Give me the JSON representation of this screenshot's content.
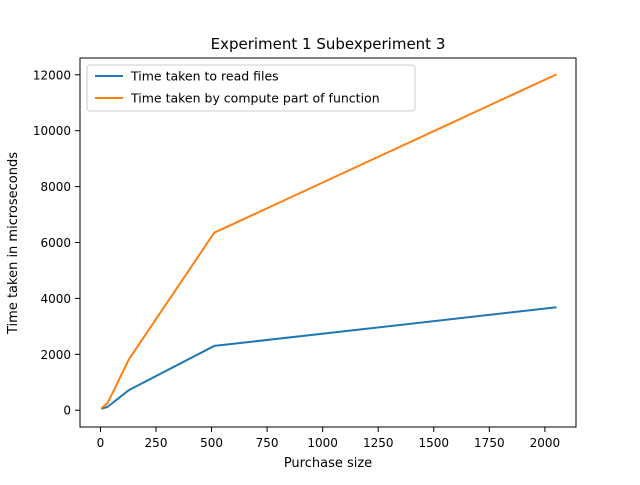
{
  "chart_data": {
    "type": "line",
    "title": "Experiment 1 Subexperiment 3",
    "xlabel": "Purchase size",
    "ylabel": "Time taken in microseconds",
    "xlim": [
      -92,
      2140
    ],
    "ylim": [
      -600,
      12600
    ],
    "xticks": [
      0,
      250,
      500,
      750,
      1000,
      1250,
      1500,
      1750,
      2000
    ],
    "yticks": [
      0,
      2000,
      4000,
      6000,
      8000,
      10000,
      12000
    ],
    "grid": false,
    "legend_position": "top-left",
    "series": [
      {
        "name": "Time taken to read files",
        "color": "#1f77b4",
        "x": [
          8,
          32,
          128,
          512,
          2048
        ],
        "y": [
          60,
          120,
          720,
          2300,
          3680
        ]
      },
      {
        "name": "Time taken by compute part of function",
        "color": "#ff7f0e",
        "x": [
          8,
          32,
          128,
          512,
          2048
        ],
        "y": [
          100,
          250,
          1820,
          6350,
          12000
        ]
      }
    ]
  }
}
